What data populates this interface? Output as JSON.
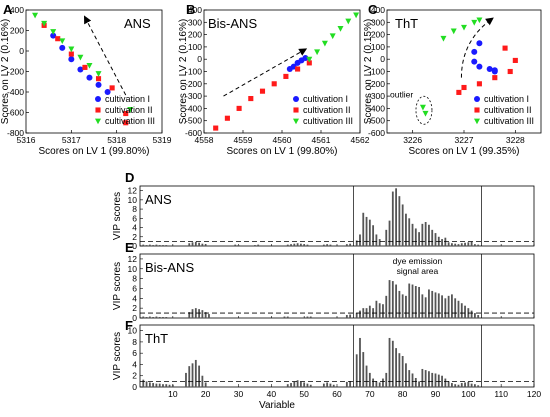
{
  "colors": {
    "cultivation_I": "#1a1aff",
    "cultivation_II": "#ff1a1a",
    "cultivation_III": "#22dd22",
    "bars": "#555555"
  },
  "chart_data": [
    {
      "panel": "A",
      "type": "scatter",
      "title": "ANS",
      "xlabel": "Scores on LV 1 (99.80%)",
      "ylabel": "Scores on LV 2 (0.16%)",
      "xlim": [
        5316,
        5319
      ],
      "ylim": [
        -800,
        400
      ],
      "xticks": [
        5316,
        5317,
        5318,
        5319
      ],
      "yticks": [
        -800,
        -600,
        -400,
        -200,
        0,
        200,
        400
      ],
      "legend": [
        "cultivation I",
        "cultivation II",
        "cultivation III"
      ],
      "legend_position": "bottom-right",
      "series": [
        {
          "name": "cultivation I",
          "color_key": "cultivation_I",
          "marker": "circle",
          "x": [
            5316.6,
            5316.8,
            5317.0,
            5317.2,
            5317.4,
            5317.6,
            5317.8
          ],
          "y": [
            150,
            30,
            -80,
            -180,
            -260,
            -330,
            -400
          ]
        },
        {
          "name": "cultivation II",
          "color_key": "cultivation_II",
          "marker": "square",
          "x": [
            5316.4,
            5316.7,
            5317.0,
            5317.3,
            5317.6,
            5317.9,
            5318.2,
            5318.2
          ],
          "y": [
            250,
            120,
            -30,
            -160,
            -270,
            -360,
            -610,
            -700
          ]
        },
        {
          "name": "cultivation III",
          "color_key": "cultivation_III",
          "marker": "triangle-down",
          "x": [
            5316.2,
            5316.4,
            5316.6,
            5316.8,
            5317.0,
            5317.2,
            5317.4,
            5317.6,
            5318.3
          ],
          "y": [
            350,
            270,
            190,
            100,
            20,
            -60,
            -140,
            -220,
            -570
          ]
        }
      ],
      "arrow": {
        "from": [
          5318.2,
          -430
        ],
        "to": [
          5317.3,
          330
        ]
      }
    },
    {
      "panel": "B",
      "type": "scatter",
      "title": "Bis-ANS",
      "xlabel": "Scores on LV 1 (99.80%)",
      "ylabel": "Scores on LV 2 (0.16%)",
      "xlim": [
        4558,
        4562
      ],
      "ylim": [
        -600,
        400
      ],
      "xticks": [
        4558,
        4559,
        4560,
        4561,
        4562
      ],
      "yticks": [
        -600,
        -500,
        -400,
        -300,
        -200,
        -100,
        0,
        100,
        200,
        300,
        400
      ],
      "legend": [
        "cultivation I",
        "cultivation II",
        "cultivation III"
      ],
      "legend_position": "bottom-right",
      "series": [
        {
          "name": "cultivation I",
          "color_key": "cultivation_I",
          "marker": "circle",
          "x": [
            4560.2,
            4560.3,
            4560.4,
            4560.5,
            4560.6
          ],
          "y": [
            -80,
            -60,
            -30,
            -10,
            10
          ]
        },
        {
          "name": "cultivation II",
          "color_key": "cultivation_II",
          "marker": "square",
          "x": [
            4558.3,
            4558.6,
            4558.9,
            4559.2,
            4559.5,
            4559.8,
            4560.1,
            4560.4,
            4560.7
          ],
          "y": [
            -560,
            -480,
            -400,
            -320,
            -260,
            -200,
            -140,
            -80,
            -30
          ]
        },
        {
          "name": "cultivation III",
          "color_key": "cultivation_III",
          "marker": "triangle-down",
          "x": [
            4560.7,
            4560.9,
            4561.1,
            4561.3,
            4561.5,
            4561.7,
            4561.9
          ],
          "y": [
            0,
            60,
            130,
            190,
            250,
            310,
            360
          ]
        }
      ],
      "arrow": {
        "from": [
          4558.5,
          -300
        ],
        "to": [
          4560.6,
          80
        ]
      }
    },
    {
      "panel": "C",
      "type": "scatter",
      "title": "ThT",
      "xlabel": "Scores on LV 1 (99.35%)",
      "ylabel": "Scores on LV 2 (0.15%)",
      "xlim": [
        3225.5,
        3228.5
      ],
      "ylim": [
        -600,
        400
      ],
      "xticks": [
        3226,
        3227,
        3228
      ],
      "yticks": [
        -600,
        -500,
        -400,
        -300,
        -200,
        -100,
        0,
        100,
        200,
        300,
        400
      ],
      "legend": [
        "cultivation I",
        "cultivation II",
        "cultivation III"
      ],
      "legend_position": "bottom-right",
      "annotations": [
        "outlier"
      ],
      "series": [
        {
          "name": "cultivation I",
          "color_key": "cultivation_I",
          "marker": "circle",
          "x": [
            3227.3,
            3227.2,
            3227.2,
            3227.3,
            3227.5,
            3227.6,
            3227.6
          ],
          "y": [
            130,
            60,
            -20,
            -60,
            -80,
            -90,
            -100
          ]
        },
        {
          "name": "cultivation II",
          "color_key": "cultivation_II",
          "marker": "square",
          "x": [
            3226.9,
            3227.0,
            3227.3,
            3227.6,
            3227.9,
            3228.0,
            3227.8
          ],
          "y": [
            -270,
            -230,
            -200,
            -150,
            -100,
            -10,
            90
          ]
        },
        {
          "name": "cultivation III",
          "color_key": "cultivation_III",
          "marker": "triangle-down",
          "x": [
            3226.6,
            3226.8,
            3227.0,
            3227.2,
            3227.3,
            3226.2,
            3226.25
          ],
          "y": [
            170,
            230,
            260,
            300,
            320,
            -390,
            -440
          ]
        }
      ]
    },
    {
      "panel": "D",
      "type": "bar",
      "title": "ANS",
      "ylabel": "VIP scores",
      "xlim": [
        0,
        120
      ],
      "ylim": [
        0,
        13
      ],
      "yticks": [
        0,
        2,
        4,
        6,
        8,
        10,
        12
      ],
      "threshold": 1,
      "divider_lines": [
        65,
        104
      ],
      "bars": [
        [
          1,
          0.3
        ],
        [
          2,
          0.2
        ],
        [
          3,
          0.3
        ],
        [
          4,
          0.2
        ],
        [
          5,
          0.3
        ],
        [
          6,
          0.2
        ],
        [
          7,
          0.2
        ],
        [
          8,
          0.2
        ],
        [
          15,
          0.6
        ],
        [
          16,
          0.8
        ],
        [
          17,
          0.9
        ],
        [
          18,
          0.7
        ],
        [
          19,
          0.5
        ],
        [
          20,
          0.4
        ],
        [
          29,
          0.3
        ],
        [
          30,
          0.2
        ],
        [
          35,
          0.2
        ],
        [
          36,
          0.3
        ],
        [
          45,
          0.3
        ],
        [
          46,
          0.4
        ],
        [
          47,
          0.5
        ],
        [
          48,
          0.6
        ],
        [
          49,
          0.5
        ],
        [
          50,
          0.4
        ],
        [
          51,
          0.3
        ],
        [
          56,
          0.3
        ],
        [
          57,
          0.4
        ],
        [
          58,
          0.3
        ],
        [
          63,
          0.4
        ],
        [
          64,
          0.5
        ],
        [
          66,
          1.2
        ],
        [
          67,
          2.5
        ],
        [
          68,
          7.2
        ],
        [
          69,
          6.3
        ],
        [
          70,
          5.7
        ],
        [
          71,
          4.5
        ],
        [
          72,
          2.5
        ],
        [
          73,
          1.5
        ],
        [
          75,
          3.5
        ],
        [
          76,
          5.5
        ],
        [
          77,
          11.8
        ],
        [
          78,
          12.5
        ],
        [
          79,
          10.8
        ],
        [
          80,
          9.0
        ],
        [
          81,
          7.0
        ],
        [
          82,
          6.0
        ],
        [
          83,
          4.8
        ],
        [
          84,
          3.8
        ],
        [
          85,
          3.0
        ],
        [
          86,
          4.8
        ],
        [
          87,
          5.2
        ],
        [
          88,
          4.6
        ],
        [
          89,
          3.5
        ],
        [
          90,
          2.8
        ],
        [
          91,
          2.0
        ],
        [
          92,
          1.5
        ],
        [
          93,
          1.8
        ],
        [
          94,
          0.8
        ],
        [
          95,
          0.6
        ],
        [
          96,
          0.5
        ],
        [
          97,
          0.4
        ],
        [
          98,
          0.6
        ],
        [
          99,
          0.7
        ],
        [
          100,
          0.8
        ],
        [
          101,
          0.9
        ],
        [
          102,
          0.4
        ],
        [
          103,
          0.3
        ]
      ]
    },
    {
      "panel": "E",
      "type": "bar",
      "title": "Bis-ANS",
      "ylabel": "VIP scores",
      "xlim": [
        0,
        120
      ],
      "ylim": [
        0,
        13
      ],
      "yticks": [
        0,
        2,
        4,
        6,
        8,
        10,
        12
      ],
      "threshold": 1,
      "divider_lines": [
        65,
        104
      ],
      "annotation": "dye emission signal area",
      "annotation_lines": [
        "dye emission",
        "signal area"
      ],
      "bars": [
        [
          1,
          0.3
        ],
        [
          2,
          0.2
        ],
        [
          3,
          0.3
        ],
        [
          4,
          0.2
        ],
        [
          5,
          0.3
        ],
        [
          6,
          0.2
        ],
        [
          7,
          0.2
        ],
        [
          8,
          0.2
        ],
        [
          15,
          1.2
        ],
        [
          16,
          1.8
        ],
        [
          17,
          2.0
        ],
        [
          18,
          1.8
        ],
        [
          19,
          1.6
        ],
        [
          20,
          1.2
        ],
        [
          21,
          0.8
        ],
        [
          44,
          0.3
        ],
        [
          45,
          0.3
        ],
        [
          51,
          0.3
        ],
        [
          52,
          0.3
        ],
        [
          63,
          0.6
        ],
        [
          64,
          0.7
        ],
        [
          66,
          1.0
        ],
        [
          67,
          1.5
        ],
        [
          68,
          2.0
        ],
        [
          69,
          2.0
        ],
        [
          70,
          2.5
        ],
        [
          71,
          2.0
        ],
        [
          72,
          3.5
        ],
        [
          73,
          3.0
        ],
        [
          74,
          2.8
        ],
        [
          75,
          4.5
        ],
        [
          76,
          7.7
        ],
        [
          77,
          7.5
        ],
        [
          78,
          6.8
        ],
        [
          79,
          5.5
        ],
        [
          80,
          4.8
        ],
        [
          81,
          4.5
        ],
        [
          82,
          7.0
        ],
        [
          83,
          6.8
        ],
        [
          84,
          6.5
        ],
        [
          85,
          6.3
        ],
        [
          86,
          4.8
        ],
        [
          87,
          4.2
        ],
        [
          88,
          5.8
        ],
        [
          89,
          5.5
        ],
        [
          90,
          5.2
        ],
        [
          91,
          5.0
        ],
        [
          92,
          4.6
        ],
        [
          93,
          4.0
        ],
        [
          94,
          4.5
        ],
        [
          95,
          4.8
        ],
        [
          96,
          4.0
        ],
        [
          97,
          3.5
        ],
        [
          98,
          3.0
        ],
        [
          99,
          2.5
        ],
        [
          100,
          2.0
        ],
        [
          101,
          1.5
        ],
        [
          102,
          1.0
        ],
        [
          103,
          0.6
        ]
      ]
    },
    {
      "panel": "F",
      "type": "bar",
      "title": "ThT",
      "xlabel": "Variable",
      "ylabel": "VIP scores",
      "xlim": [
        0,
        120
      ],
      "ylim": [
        0,
        11
      ],
      "xticks": [
        10,
        20,
        30,
        40,
        50,
        60,
        70,
        80,
        90,
        100,
        110,
        120
      ],
      "yticks": [
        0,
        2,
        4,
        6,
        8,
        10
      ],
      "threshold": 1,
      "divider_lines": [
        65,
        104
      ],
      "bars": [
        [
          1,
          1.3
        ],
        [
          2,
          1.0
        ],
        [
          3,
          0.8
        ],
        [
          4,
          0.7
        ],
        [
          5,
          0.6
        ],
        [
          6,
          0.6
        ],
        [
          7,
          0.5
        ],
        [
          8,
          0.5
        ],
        [
          9,
          0.4
        ],
        [
          10,
          0.4
        ],
        [
          14,
          2.5
        ],
        [
          15,
          3.7
        ],
        [
          16,
          4.2
        ],
        [
          17,
          4.8
        ],
        [
          18,
          3.8
        ],
        [
          19,
          2.0
        ],
        [
          20,
          0.8
        ],
        [
          45,
          0.5
        ],
        [
          46,
          0.7
        ],
        [
          47,
          0.9
        ],
        [
          48,
          1.2
        ],
        [
          49,
          0.9
        ],
        [
          50,
          0.8
        ],
        [
          51,
          0.6
        ],
        [
          52,
          0.4
        ],
        [
          56,
          0.6
        ],
        [
          57,
          0.8
        ],
        [
          58,
          0.6
        ],
        [
          59,
          0.4
        ],
        [
          63,
          0.9
        ],
        [
          64,
          1.0
        ],
        [
          66,
          5.8
        ],
        [
          67,
          8.7
        ],
        [
          68,
          6.2
        ],
        [
          69,
          3.8
        ],
        [
          70,
          2.5
        ],
        [
          71,
          1.5
        ],
        [
          72,
          1.0
        ],
        [
          73,
          0.8
        ],
        [
          74,
          1.5
        ],
        [
          75,
          2.5
        ],
        [
          76,
          8.7
        ],
        [
          77,
          8.2
        ],
        [
          78,
          6.9
        ],
        [
          79,
          6.0
        ],
        [
          80,
          5.5
        ],
        [
          81,
          4.2
        ],
        [
          82,
          3.0
        ],
        [
          83,
          2.4
        ],
        [
          84,
          1.6
        ],
        [
          85,
          1.0
        ],
        [
          86,
          3.2
        ],
        [
          87,
          3.0
        ],
        [
          88,
          2.8
        ],
        [
          89,
          2.5
        ],
        [
          90,
          2.4
        ],
        [
          91,
          2.2
        ],
        [
          92,
          2.0
        ],
        [
          93,
          1.5
        ],
        [
          94,
          1.0
        ],
        [
          95,
          0.7
        ],
        [
          96,
          0.5
        ],
        [
          97,
          0.4
        ],
        [
          98,
          0.7
        ],
        [
          99,
          0.8
        ],
        [
          100,
          0.9
        ],
        [
          101,
          0.6
        ],
        [
          102,
          0.5
        ],
        [
          103,
          0.3
        ]
      ]
    }
  ]
}
